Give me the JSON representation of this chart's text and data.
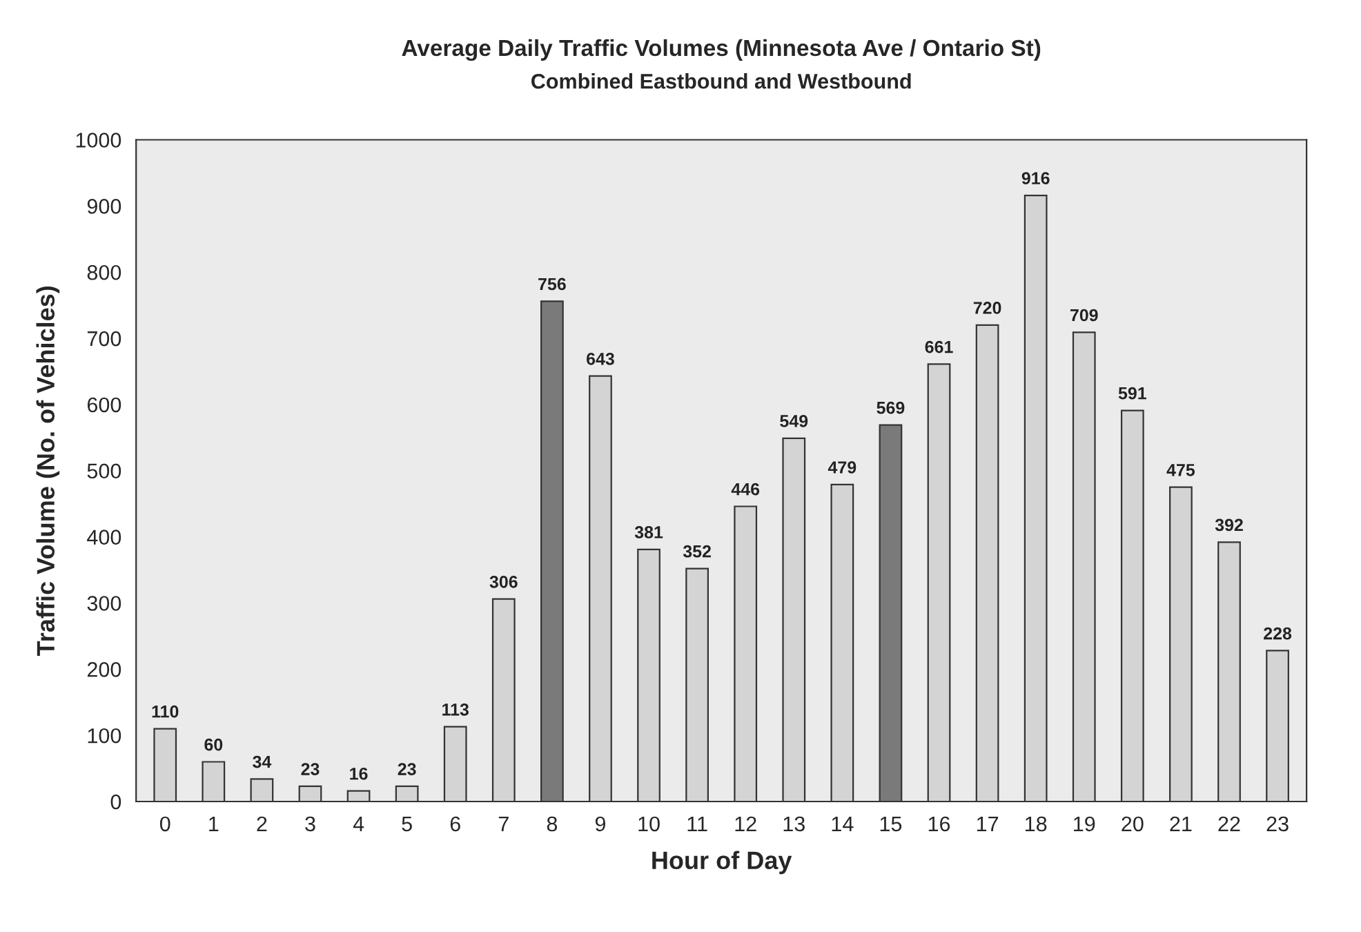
{
  "chart_data": {
    "type": "bar",
    "title": "Average Daily Traffic Volumes (Minnesota Ave / Ontario St)",
    "subtitle": "Combined Eastbound and Westbound",
    "xlabel": "Hour of Day",
    "ylabel": "Traffic Volume (No. of Vehicles)",
    "categories": [
      "0",
      "1",
      "2",
      "3",
      "4",
      "5",
      "6",
      "7",
      "8",
      "9",
      "10",
      "11",
      "12",
      "13",
      "14",
      "15",
      "16",
      "17",
      "18",
      "19",
      "20",
      "21",
      "22",
      "23"
    ],
    "values": [
      110,
      60,
      34,
      23,
      16,
      23,
      113,
      306,
      756,
      643,
      381,
      352,
      446,
      549,
      479,
      569,
      661,
      720,
      916,
      709,
      591,
      475,
      392,
      228
    ],
    "colors": [
      "#d4d4d4",
      "#d4d4d4",
      "#d4d4d4",
      "#d4d4d4",
      "#d4d4d4",
      "#d4d4d4",
      "#d4d4d4",
      "#d4d4d4",
      "#7a7a7a",
      "#d4d4d4",
      "#d4d4d4",
      "#d4d4d4",
      "#d4d4d4",
      "#d4d4d4",
      "#d4d4d4",
      "#7a7a7a",
      "#d4d4d4",
      "#d4d4d4",
      "#d4d4d4",
      "#d4d4d4",
      "#d4d4d4",
      "#d4d4d4",
      "#d4d4d4",
      "#d4d4d4"
    ],
    "ylim": [
      0,
      1000
    ],
    "yticks": [
      0,
      100,
      200,
      300,
      400,
      500,
      600,
      700,
      800,
      900,
      1000
    ],
    "grid": false,
    "data_labels": true
  }
}
